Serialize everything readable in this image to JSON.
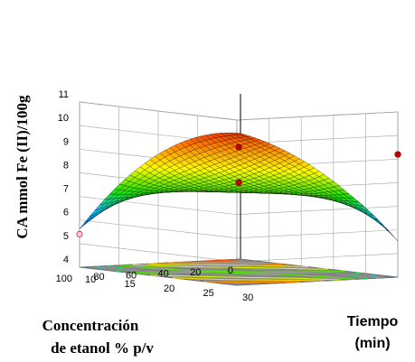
{
  "chart_data": {
    "type": "surface",
    "zlabel": "CA mmol Fe (II)/100g",
    "xlabel_line1": "Concentración",
    "xlabel_line2": "de etanol % p/v",
    "ylabel_line1": "Tiempo",
    "ylabel_line2": "(min)",
    "z_ticks": [
      "4",
      "5",
      "6",
      "7",
      "8",
      "9",
      "10",
      "11"
    ],
    "zlim": [
      4,
      11
    ],
    "x_ticks": [
      "100",
      "80",
      "60",
      "40",
      "20",
      "0"
    ],
    "xlim": [
      0,
      100
    ],
    "y_ticks": [
      "10",
      "15",
      "20",
      "25",
      "30"
    ],
    "ylim": [
      10,
      30
    ],
    "grid": true,
    "colormap": [
      "#1f3bff",
      "#00c8ff",
      "#22e000",
      "#ffff00",
      "#ff8000",
      "#e60000"
    ],
    "floor_color": "#8c8c8c",
    "surface": {
      "model": "saddle",
      "corners": [
        {
          "x": 0,
          "y": 10,
          "z": 9.3
        },
        {
          "x": 0,
          "y": 30,
          "z": 5.5
        },
        {
          "x": 100,
          "y": 10,
          "z": 5.6
        },
        {
          "x": 100,
          "y": 30,
          "z": 9.1
        }
      ],
      "center": {
        "x": 50,
        "y": 20,
        "z": 7.4
      },
      "x_peak": 8.8,
      "y_peak": 9.8
    },
    "design_points": [
      {
        "x": 100,
        "y": 10,
        "z": 5.4
      },
      {
        "x": 50,
        "y": 20,
        "z": 7.8
      },
      {
        "x": 50,
        "y": 20,
        "z": 9.3
      },
      {
        "x": 0,
        "y": 30,
        "z": 9.2
      }
    ]
  }
}
